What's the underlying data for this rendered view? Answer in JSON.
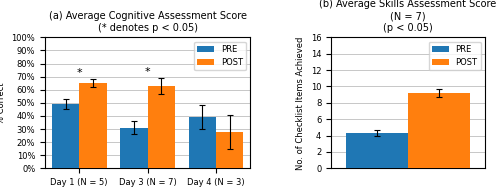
{
  "chart_data": [
    {
      "type": "bar",
      "title": "(a) Average Cognitive Assessment Score\n(* denotes p < 0.05)",
      "y_label": "% Correct",
      "categories": [
        "Day 1 (N = 5)",
        "Day 3 (N = 7)",
        "Day 4 (N = 3)"
      ],
      "series": [
        {
          "name": "PRE",
          "values": [
            0.49,
            0.31,
            0.39
          ],
          "errors": [
            0.04,
            0.05,
            0.09
          ]
        },
        {
          "name": "POST",
          "values": [
            0.65,
            0.63,
            0.28
          ],
          "errors": [
            0.03,
            0.06,
            0.13
          ]
        }
      ],
      "ylim": [
        0,
        1.0
      ],
      "yticks": [
        {
          "value": 0,
          "label": "0%"
        },
        {
          "value": 0.1,
          "label": "10%"
        },
        {
          "value": 0.2,
          "label": "20%"
        },
        {
          "value": 0.3,
          "label": "30%"
        },
        {
          "value": 0.4,
          "label": "40%"
        },
        {
          "value": 0.5,
          "label": "50%"
        },
        {
          "value": 0.6,
          "label": "60%"
        },
        {
          "value": 0.7,
          "label": "70%"
        },
        {
          "value": 0.8,
          "label": "80%"
        },
        {
          "value": 0.9,
          "label": "90%"
        },
        {
          "value": 1.0,
          "label": "100%"
        }
      ],
      "annotations": [
        {
          "text": "*",
          "category": "Day 1 (N = 5)"
        },
        {
          "text": "*",
          "category": "Day 3 (N = 7)"
        }
      ],
      "grid": true,
      "legend": "upper right"
    },
    {
      "type": "bar",
      "title": "(b) Average Skills Assessment Score (N = 7)\n(p < 0.05)",
      "y_label": "No. of Checklist Items Achieved",
      "categories": [
        null
      ],
      "series": [
        {
          "name": "PRE",
          "values": [
            4.3
          ],
          "errors": [
            0.4
          ]
        },
        {
          "name": "POST",
          "values": [
            9.2
          ],
          "errors": [
            0.5
          ]
        }
      ],
      "ylim": [
        0,
        16
      ],
      "yticks": [
        0,
        2,
        4,
        6,
        8,
        10,
        12,
        14,
        16
      ],
      "grid": true,
      "legend": "upper right",
      "tick_labels": "y"
    }
  ]
}
